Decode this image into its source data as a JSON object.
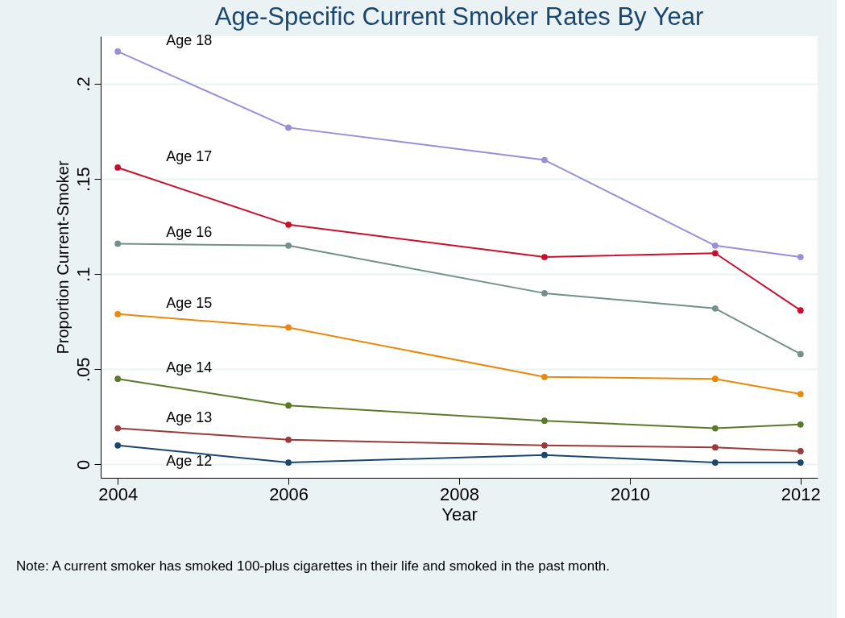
{
  "chart_data": {
    "type": "line",
    "title": "Age-Specific Current Smoker Rates By Year",
    "xlabel": "Year",
    "ylabel": "Proportion Current-Smoker",
    "x": [
      2004,
      2006,
      2009,
      2011,
      2012
    ],
    "series": [
      {
        "name": "Age 18",
        "color": "#9a8fd6",
        "values": [
          0.217,
          0.177,
          0.16,
          0.115,
          0.109
        ]
      },
      {
        "name": "Age 17",
        "color": "#c8102e",
        "values": [
          0.156,
          0.126,
          0.109,
          0.111,
          0.081
        ]
      },
      {
        "name": "Age 16",
        "color": "#71918a",
        "values": [
          0.116,
          0.115,
          0.09,
          0.082,
          0.058
        ]
      },
      {
        "name": "Age 15",
        "color": "#e8890c",
        "values": [
          0.079,
          0.072,
          0.046,
          0.045,
          0.037
        ]
      },
      {
        "name": "Age 14",
        "color": "#5a7a2a",
        "values": [
          0.045,
          0.031,
          0.023,
          0.019,
          0.021
        ]
      },
      {
        "name": "Age 13",
        "color": "#9b3a3a",
        "values": [
          0.019,
          0.013,
          0.01,
          0.009,
          0.007
        ]
      },
      {
        "name": "Age 12",
        "color": "#1a476f",
        "values": [
          0.01,
          0.001,
          0.005,
          0.001,
          0.001
        ]
      }
    ],
    "xlim": [
      2003.8,
      2012.2
    ],
    "xticks": [
      2004,
      2006,
      2008,
      2010,
      2012
    ],
    "ylim": [
      -0.007,
      0.225
    ],
    "yticks": [
      {
        "value": 0,
        "label": "0"
      },
      {
        "value": 0.05,
        "label": ".05"
      },
      {
        "value": 0.1,
        "label": ".1"
      },
      {
        "value": 0.15,
        "label": ".15"
      },
      {
        "value": 0.2,
        "label": ".2"
      }
    ],
    "grid": "y",
    "marker": "circle",
    "line_style": "solid",
    "legend": false,
    "annotations": [
      "Note: A current smoker has smoked 100-plus cigarettes in their life and smoked in the past month."
    ]
  }
}
